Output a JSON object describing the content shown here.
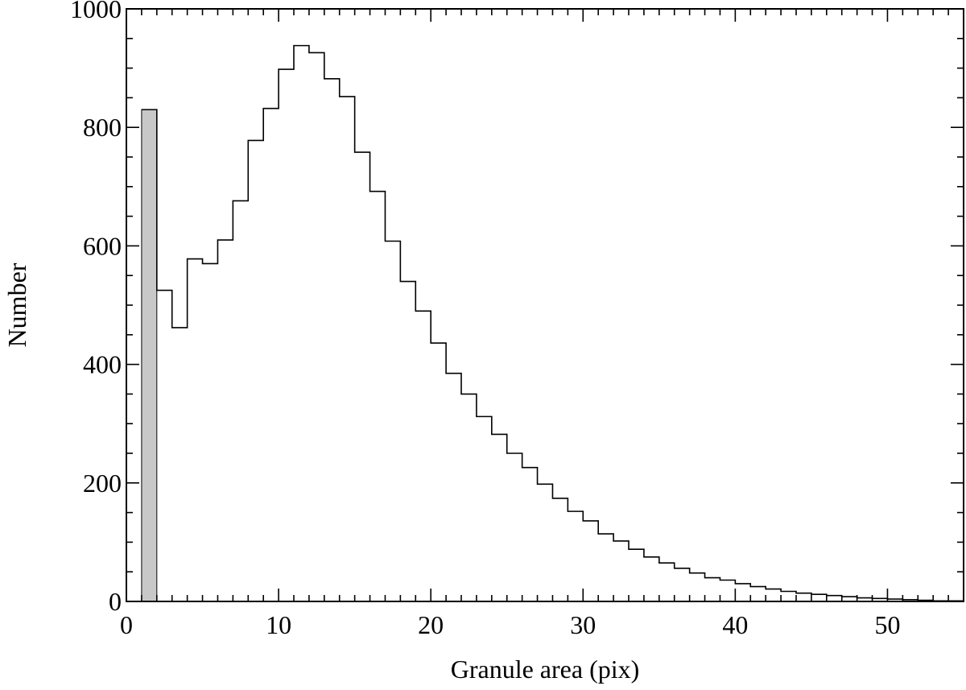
{
  "chart_data": {
    "type": "bar",
    "title": "",
    "xlabel": "Granule area (pix)",
    "ylabel": "Number",
    "xlim": [
      0,
      55
    ],
    "ylim": [
      0,
      1000
    ],
    "x_ticks": [
      0,
      10,
      20,
      30,
      40,
      50
    ],
    "y_ticks": [
      0,
      200,
      400,
      600,
      800,
      1000
    ],
    "x_minor_step": 1,
    "y_minor_step": 50,
    "grid": false,
    "bin_width": 1,
    "bins_start": 1,
    "series": [
      {
        "style": "step-outline",
        "color": "#000000",
        "values": [
          830,
          525,
          462,
          578,
          570,
          610,
          676,
          778,
          832,
          898,
          938,
          926,
          882,
          852,
          758,
          692,
          608,
          540,
          490,
          436,
          385,
          350,
          312,
          282,
          250,
          226,
          198,
          174,
          152,
          136,
          114,
          102,
          88,
          75,
          65,
          56,
          48,
          40,
          36,
          30,
          25,
          21,
          17,
          14,
          12,
          10,
          8,
          6,
          5,
          4,
          3,
          2,
          1,
          1
        ]
      },
      {
        "style": "filled",
        "color": "#c8c8c8",
        "x_start": 1,
        "x_end": 2,
        "value": 830
      }
    ]
  }
}
